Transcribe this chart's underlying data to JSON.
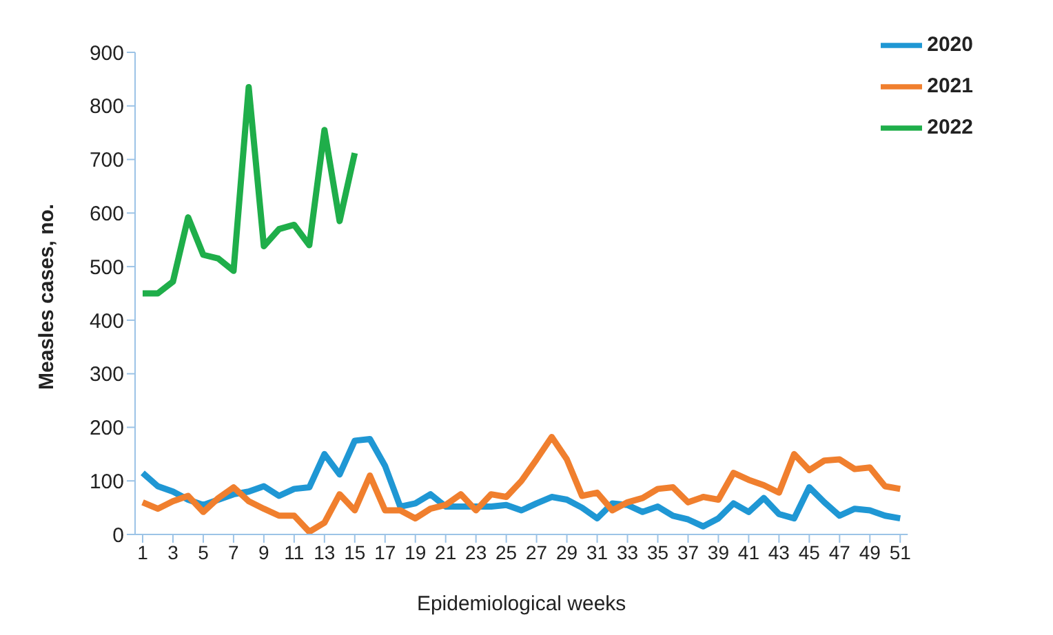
{
  "chart_data": {
    "type": "line",
    "xlabel": "Epidemiological weeks",
    "ylabel": "Measles cases, no.",
    "x": [
      1,
      2,
      3,
      4,
      5,
      6,
      7,
      8,
      9,
      10,
      11,
      12,
      13,
      14,
      15,
      16,
      17,
      18,
      19,
      20,
      21,
      22,
      23,
      24,
      25,
      26,
      27,
      28,
      29,
      30,
      31,
      32,
      33,
      34,
      35,
      36,
      37,
      38,
      39,
      40,
      41,
      42,
      43,
      44,
      45,
      46,
      47,
      48,
      49,
      50,
      51
    ],
    "xlim": [
      0.5,
      51.5
    ],
    "xticks": [
      1,
      3,
      5,
      7,
      9,
      11,
      13,
      15,
      17,
      19,
      21,
      23,
      25,
      27,
      29,
      31,
      33,
      35,
      37,
      39,
      41,
      43,
      45,
      47,
      49,
      51
    ],
    "ylim": [
      0,
      900
    ],
    "yticks": [
      0,
      100,
      200,
      300,
      400,
      500,
      600,
      700,
      800,
      900
    ],
    "grid": false,
    "legend": "top right",
    "marker": "none",
    "line_style": "solid",
    "series": [
      {
        "name": "2020",
        "color": "#1f97d4",
        "values": [
          115,
          90,
          80,
          65,
          55,
          65,
          75,
          80,
          90,
          72,
          85,
          88,
          150,
          112,
          175,
          178,
          128,
          52,
          58,
          75,
          52,
          52,
          52,
          52,
          55,
          45,
          58,
          70,
          65,
          50,
          30,
          58,
          55,
          42,
          52,
          35,
          28,
          15,
          30,
          58,
          42,
          68,
          38,
          30,
          88,
          60,
          35,
          48,
          45,
          35,
          30
        ]
      },
      {
        "name": "2021",
        "color": "#f07f2e",
        "values": [
          60,
          48,
          62,
          72,
          42,
          68,
          88,
          62,
          48,
          35,
          35,
          5,
          22,
          75,
          45,
          110,
          45,
          45,
          30,
          48,
          55,
          75,
          45,
          75,
          70,
          100,
          140,
          182,
          140,
          72,
          78,
          45,
          60,
          68,
          85,
          88,
          60,
          70,
          65,
          115,
          102,
          92,
          78,
          150,
          120,
          138,
          140,
          122,
          125,
          90,
          85
        ]
      },
      {
        "name": "2022",
        "color": "#1fae4a",
        "values": [
          450,
          450,
          472,
          592,
          522,
          515,
          492,
          835,
          538,
          570,
          578,
          540,
          755,
          585,
          712,
          null,
          null,
          null,
          null,
          null,
          null,
          null,
          null,
          null,
          null,
          null,
          null,
          null,
          null,
          null,
          null,
          null,
          null,
          null,
          null,
          null,
          null,
          null,
          null,
          null,
          null,
          null,
          null,
          null,
          null,
          null,
          null,
          null,
          null,
          null,
          null
        ]
      }
    ]
  }
}
